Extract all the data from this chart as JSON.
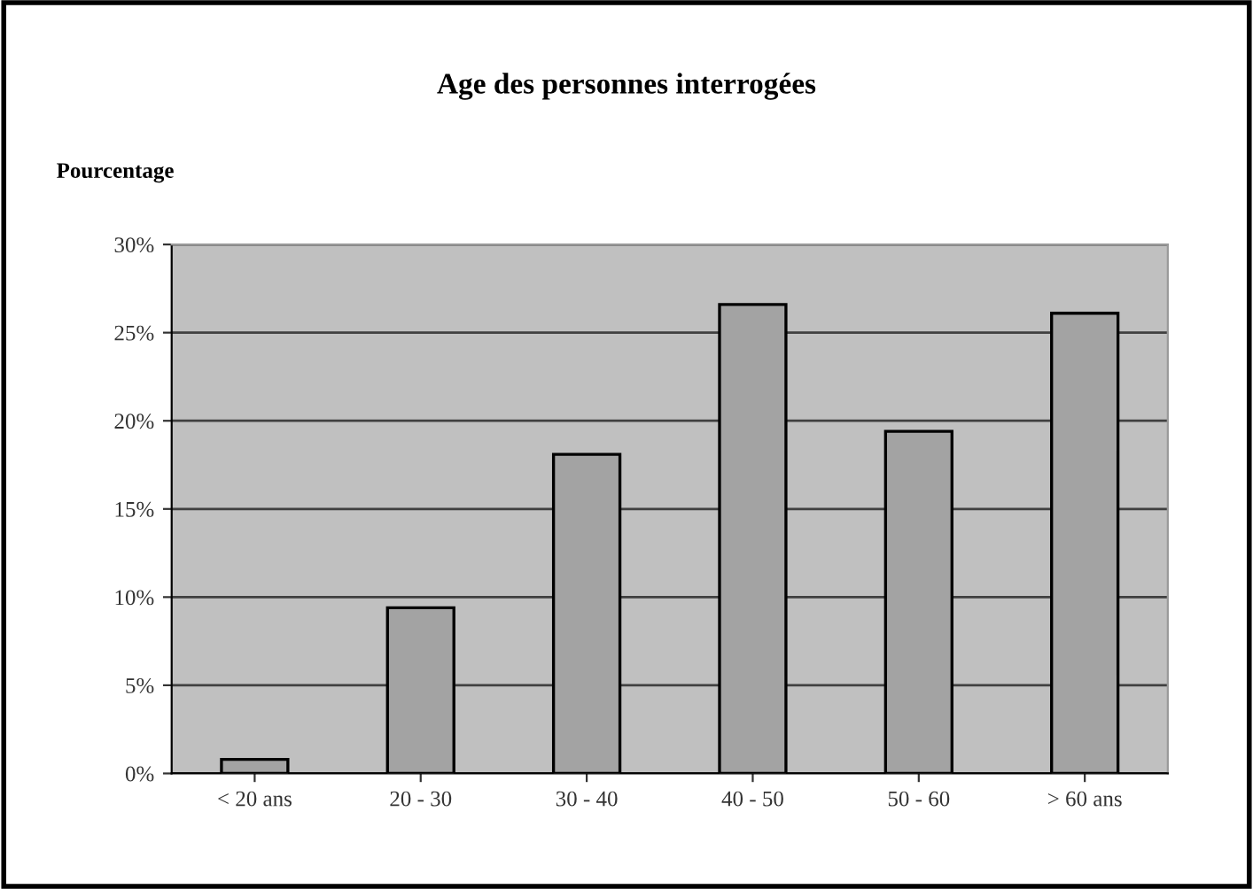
{
  "chart_data": {
    "type": "bar",
    "title": "Age des personnes interrogées",
    "ylabel": "Pourcentage",
    "categories": [
      "< 20 ans",
      "20 - 30",
      "30 - 40",
      "40 - 50",
      "50 - 60",
      "> 60 ans"
    ],
    "values": [
      0.8,
      9.4,
      18.1,
      26.6,
      19.4,
      26.1
    ],
    "color": "#a3a3a3",
    "ylim": [
      0,
      30
    ],
    "yticks": [
      {
        "value": 0,
        "label": "0%"
      },
      {
        "value": 5,
        "label": "5%"
      },
      {
        "value": 10,
        "label": "10%"
      },
      {
        "value": 15,
        "label": "15%"
      },
      {
        "value": 20,
        "label": "20%"
      },
      {
        "value": 25,
        "label": "25%"
      },
      {
        "value": 30,
        "label": "30%"
      }
    ],
    "grid": "y"
  }
}
